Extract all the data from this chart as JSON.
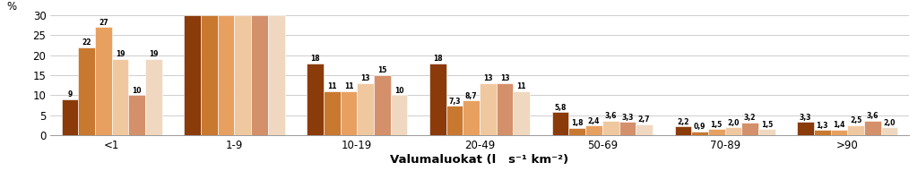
{
  "categories": [
    "<1",
    "1-9",
    "10-19",
    "20-49",
    "50-69",
    "70-89",
    ">90"
  ],
  "bar_colors": [
    "#8B3A0A",
    "#C97830",
    "#E8A060",
    "#F0C8A0",
    "#D4906A",
    "#F0D8C0"
  ],
  "values": [
    [
      9,
      30,
      18,
      18,
      5.8,
      2.2,
      3.3
    ],
    [
      22,
      30,
      11,
      7.3,
      1.8,
      0.9,
      1.3
    ],
    [
      27,
      30,
      11,
      8.7,
      2.4,
      1.5,
      1.4
    ],
    [
      19,
      30,
      13,
      13,
      3.6,
      2.0,
      2.5
    ],
    [
      10,
      30,
      15,
      13,
      3.3,
      3.2,
      3.6
    ],
    [
      19,
      30,
      10,
      11,
      2.7,
      1.5,
      2.0
    ]
  ],
  "bar_labels": [
    [
      "9",
      null,
      "18",
      "18",
      "5,8",
      "2,2",
      "3,3"
    ],
    [
      "22",
      null,
      "11",
      "7,3",
      "1,8",
      "0,9",
      "1,3"
    ],
    [
      "27",
      null,
      "11",
      "8,7",
      "2,4",
      "1,5",
      "1,4"
    ],
    [
      "19",
      null,
      "13",
      "13",
      "3,6",
      "2,0",
      "2,5"
    ],
    [
      "10",
      null,
      "15",
      "13",
      "3,3",
      "3,2",
      "3,6"
    ],
    [
      "19",
      null,
      "10",
      "11",
      "2,7",
      "1,5",
      "2,0"
    ]
  ],
  "ylim": [
    0,
    30
  ],
  "yticks": [
    0,
    5,
    10,
    15,
    20,
    25,
    30
  ],
  "ylabel": "%",
  "xlabel": "Valumaluokat (l   s⁻¹ km⁻²)",
  "background_color": "#ffffff",
  "group_width": 0.82,
  "label_fontsize": 5.5,
  "axis_fontsize": 8.5,
  "xlabel_fontsize": 9.5
}
